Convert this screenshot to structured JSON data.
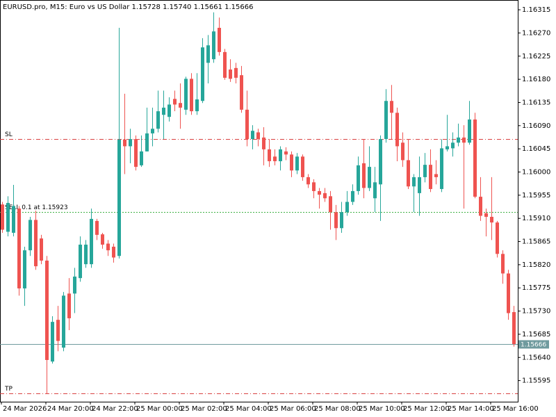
{
  "chart_data": {
    "type": "candlestick",
    "title": "EURUSD.pro, M15:  Euro vs US Dollar  1.15728 1.15740 1.15661 1.15666",
    "categories": [
      "24 Mar 2026",
      null,
      null,
      null,
      null,
      null,
      null,
      null,
      "24 Mar 20:00",
      null,
      null,
      null,
      null,
      null,
      null,
      null,
      "24 Mar 22:00",
      null,
      null,
      null,
      null,
      null,
      null,
      null,
      "25 Mar 00:00",
      null,
      null,
      null,
      null,
      null,
      null,
      null,
      "25 Mar 02:00",
      null,
      null,
      null,
      null,
      null,
      null,
      null,
      "25 Mar 04:00",
      null,
      null,
      null,
      null,
      null,
      null,
      null,
      "25 Mar 06:00",
      null,
      null,
      null,
      null,
      null,
      null,
      null,
      "25 Mar 08:00",
      null,
      null,
      null,
      null,
      null,
      null,
      null,
      "25 Mar 10:00",
      null,
      null,
      null,
      null,
      null,
      null,
      null,
      "25 Mar 12:00",
      null,
      null,
      null,
      null,
      null,
      null,
      null,
      "25 Mar 14:00",
      null,
      null,
      null,
      null,
      null,
      null,
      null,
      "25 Mar 16:00",
      null,
      null,
      null,
      null
    ],
    "open": [
      1.15937,
      1.15884,
      1.15882,
      1.15929,
      1.15774,
      1.15848,
      1.15907,
      1.15871,
      1.15828,
      1.15632,
      1.15713,
      1.15659,
      1.15764,
      1.15764,
      1.15794,
      1.15821,
      1.15821,
      1.15905,
      1.15879,
      1.15861,
      1.15855,
      1.15837,
      1.16063,
      1.1605,
      1.16064,
      1.16013,
      1.1604,
      1.16075,
      1.16084,
      1.16111,
      1.16107,
      1.16142,
      1.16134,
      1.16121,
      1.16181,
      1.16118,
      1.16138,
      1.16212,
      1.16219,
      1.1628,
      1.16233,
      1.16199,
      1.16202,
      1.16188,
      1.16121,
      1.16064,
      1.16077,
      1.16067,
      1.16044,
      1.1603,
      1.16021,
      1.1604,
      1.16034,
      1.16003,
      1.1603,
      1.1599,
      1.1598,
      1.15963,
      1.15959,
      1.15953,
      1.15922,
      1.15891,
      1.15922,
      1.15942,
      1.15963,
      1.16017,
      1.15969,
      1.15949,
      1.15976,
      1.16064,
      1.16138,
      1.16115,
      1.16057,
      1.16023,
      1.15972,
      1.15959,
      1.1599,
      1.16014,
      1.15996,
      1.15967,
      1.16044,
      1.16046,
      1.16057,
      1.16067,
      1.16057,
      1.16102,
      1.15952,
      1.1592,
      1.15913,
      1.15902,
      1.15841,
      1.15803,
      1.15728
    ],
    "close": [
      1.15888,
      1.1594,
      1.15934,
      1.15774,
      1.15848,
      1.15907,
      1.15817,
      1.15828,
      1.15635,
      1.15709,
      1.15672,
      1.1576,
      1.15716,
      1.15797,
      1.15859,
      1.15859,
      1.15909,
      1.15878,
      1.15859,
      1.15848,
      1.15834,
      1.16063,
      1.1605,
      1.16064,
      1.1601,
      1.1604,
      1.16075,
      1.16084,
      1.16118,
      1.16125,
      1.16131,
      1.16131,
      1.16125,
      1.16181,
      1.16118,
      1.16141,
      1.16242,
      1.16246,
      1.16273,
      1.16233,
      1.16183,
      1.16181,
      1.16183,
      1.16121,
      1.16064,
      1.1608,
      1.16064,
      1.16044,
      1.16021,
      1.16021,
      1.16044,
      1.16034,
      1.16003,
      1.1603,
      1.1599,
      1.15976,
      1.15963,
      1.15956,
      1.15949,
      1.15922,
      1.15891,
      1.15922,
      1.15942,
      1.15963,
      1.16013,
      1.15969,
      1.1601,
      1.1598,
      1.16064,
      1.16138,
      1.16115,
      1.1605,
      1.16023,
      1.15972,
      1.1599,
      1.1599,
      1.16014,
      1.15967,
      1.1599,
      1.16046,
      1.1605,
      1.16057,
      1.16067,
      1.16057,
      1.16102,
      1.15952,
      1.15915,
      1.15913,
      1.15902,
      1.15841,
      1.15803,
      1.15726,
      1.15666
    ],
    "high": [
      1.15942,
      1.15953,
      1.15975,
      1.15934,
      1.15855,
      1.15913,
      1.15925,
      1.15878,
      1.15837,
      1.1572,
      1.1574,
      1.15767,
      1.15794,
      1.15814,
      1.15875,
      1.15868,
      1.15929,
      1.15909,
      1.15882,
      1.15868,
      1.15861,
      1.1628,
      1.16152,
      1.16084,
      1.16071,
      1.16071,
      1.16125,
      1.16125,
      1.16158,
      1.16158,
      1.16145,
      1.16158,
      1.16172,
      1.16185,
      1.16192,
      1.16192,
      1.1626,
      1.16266,
      1.1631,
      1.163,
      1.16239,
      1.16219,
      1.16212,
      1.16206,
      1.16158,
      1.16091,
      1.16084,
      1.16087,
      1.16064,
      1.16044,
      1.1605,
      1.16048,
      1.1604,
      1.16037,
      1.16034,
      1.15996,
      1.15986,
      1.15969,
      1.15969,
      1.15963,
      1.15936,
      1.15942,
      1.15963,
      1.15976,
      1.1603,
      1.16064,
      1.1605,
      1.1601,
      1.16071,
      1.16161,
      1.16169,
      1.16125,
      1.16077,
      1.16064,
      1.15996,
      1.1603,
      1.16037,
      1.16044,
      1.16023,
      1.16064,
      1.16111,
      1.16077,
      1.16094,
      1.16091,
      1.16138,
      1.16115,
      1.1599,
      1.15929,
      1.1599,
      1.15905,
      1.15848,
      1.1581,
      1.1574
    ],
    "low": [
      1.15882,
      1.15875,
      1.15875,
      1.1576,
      1.1574,
      1.15837,
      1.1581,
      1.15821,
      1.1557,
      1.15628,
      1.15652,
      1.15652,
      1.15693,
      1.15726,
      1.15787,
      1.15814,
      1.15814,
      1.15868,
      1.15851,
      1.15837,
      1.15824,
      1.15832,
      1.15996,
      1.16017,
      1.16003,
      1.1601,
      1.1604,
      1.1605,
      1.16077,
      1.16064,
      1.16098,
      1.16118,
      1.16084,
      1.16111,
      1.16111,
      1.16111,
      1.16134,
      1.16172,
      1.16212,
      1.16226,
      1.16179,
      1.16175,
      1.16172,
      1.16115,
      1.1605,
      1.16044,
      1.1605,
      1.16013,
      1.1601,
      1.16013,
      1.16003,
      1.16023,
      1.1599,
      1.15996,
      1.15983,
      1.15969,
      1.15949,
      1.15929,
      1.15942,
      1.15888,
      1.15868,
      1.15882,
      1.15915,
      1.15936,
      1.15956,
      1.15949,
      1.15963,
      1.15922,
      1.15905,
      1.16057,
      1.16064,
      1.16021,
      1.1601,
      1.15967,
      1.15922,
      1.15915,
      1.1598,
      1.15961,
      1.15976,
      1.15961,
      1.1604,
      1.1603,
      1.1605,
      1.15929,
      1.16053,
      1.15949,
      1.15905,
      1.15875,
      1.15868,
      1.15834,
      1.15783,
      1.15713,
      1.15661
    ],
    "up_color": "#26a69a",
    "down_color": "#ef5350",
    "ylim": [
      1.15554,
      1.16334
    ],
    "yticks": [
      1.16315,
      {
        "value": 1.1627,
        "label": "1.16270"
      },
      1.16225,
      {
        "value": 1.1618,
        "label": "1.16180"
      },
      1.16135,
      {
        "value": 1.1609,
        "label": "1.16090"
      },
      1.16045,
      {
        "value": 1.16,
        "label": "1.16000"
      },
      1.15955,
      {
        "value": 1.1591,
        "label": "1.15910"
      },
      1.15865,
      {
        "value": 1.1582,
        "label": "1.15820"
      },
      1.15775,
      {
        "value": 1.1573,
        "label": "1.15730"
      },
      1.15685,
      {
        "value": 1.1564,
        "label": "1.15640"
      },
      1.15595
    ],
    "levels": [
      {
        "label": "SL",
        "value": 1.16064,
        "color": "#d94040",
        "style": "dashdot"
      },
      {
        "label": "SELL 0.1 at 1.15923",
        "value": 1.15923,
        "color": "#3cb043",
        "style": "dashed"
      },
      {
        "label": "TP",
        "value": 1.1557,
        "color": "#d94040",
        "style": "dashdot"
      }
    ],
    "bid": 1.15666,
    "bid_color": "#6f9a9e"
  }
}
